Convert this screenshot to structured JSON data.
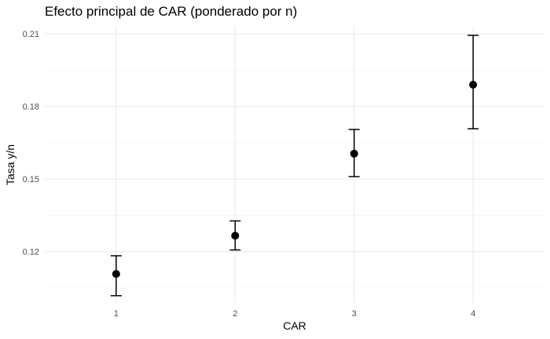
{
  "chart_data": {
    "type": "scatter",
    "title": "Efecto principal de CAR (ponderado por n)",
    "xlabel": "CAR",
    "ylabel": "Tasa y/n",
    "categories": [
      "1",
      "2",
      "3",
      "4"
    ],
    "x": [
      1,
      2,
      3,
      4
    ],
    "values": [
      0.1108,
      0.1266,
      0.1605,
      0.189
    ],
    "error_bars": {
      "lower": [
        0.1018,
        0.1207,
        0.151,
        0.1708
      ],
      "upper": [
        0.1183,
        0.1327,
        0.1705,
        0.2094
      ]
    },
    "xlim": [
      0.4,
      4.6
    ],
    "ylim": [
      0.0985,
      0.2133
    ],
    "y_ticks": [
      0.12,
      0.15,
      0.18,
      0.21
    ],
    "y_tick_labels": [
      "0.12",
      "0.15",
      "0.18",
      "0.21"
    ],
    "grid": true,
    "legend": "none",
    "colors": {
      "point": "#000000",
      "grid": "#ebebeb",
      "text": "#4d4d4d"
    }
  }
}
